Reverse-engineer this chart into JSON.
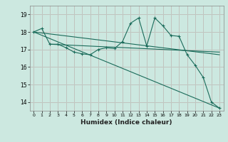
{
  "xlabel": "Humidex (Indice chaleur)",
  "bg_color": "#cce8e0",
  "grid_color_h": "#e8a0a0",
  "grid_color_v": "#e8a0a0",
  "line_color": "#1a6b5a",
  "x_ticks": [
    0,
    1,
    2,
    3,
    4,
    5,
    6,
    7,
    8,
    9,
    10,
    11,
    12,
    13,
    14,
    15,
    16,
    17,
    18,
    19,
    20,
    21,
    22,
    23
  ],
  "y_ticks": [
    14,
    15,
    16,
    17,
    18,
    19
  ],
  "xlim": [
    -0.5,
    23.5
  ],
  "ylim": [
    13.5,
    19.5
  ],
  "series_main": {
    "x": [
      0,
      1,
      2,
      3,
      4,
      5,
      6,
      7,
      8,
      9,
      10,
      11,
      12,
      13,
      14,
      15,
      16,
      17,
      18,
      19,
      20,
      21,
      22,
      23
    ],
    "y": [
      18.0,
      18.2,
      17.3,
      17.3,
      17.1,
      16.85,
      16.75,
      16.7,
      17.0,
      17.1,
      17.05,
      17.45,
      18.5,
      18.8,
      17.2,
      18.8,
      18.35,
      17.8,
      17.75,
      16.7,
      16.1,
      15.4,
      14.0,
      13.65
    ]
  },
  "series_line1": {
    "x": [
      0,
      23
    ],
    "y": [
      18.0,
      16.7
    ]
  },
  "series_line2": {
    "x": [
      0,
      23
    ],
    "y": [
      18.0,
      13.65
    ]
  },
  "series_line3": {
    "x": [
      2,
      23
    ],
    "y": [
      17.3,
      16.85
    ]
  }
}
